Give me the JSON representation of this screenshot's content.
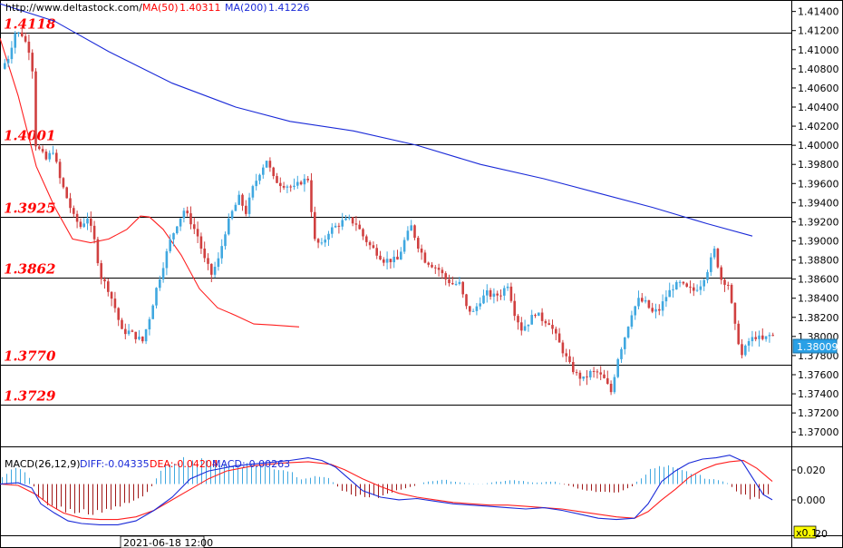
{
  "header": {
    "url": "http://www.deltastock.com/",
    "ma50_label": "MA(50)",
    "ma50_value": "1.40311",
    "ma200_label": "MA(200)",
    "ma200_value": "1.41226"
  },
  "colors": {
    "up": "#40a8e0",
    "down": "#d04040",
    "ma50": "#ff2020",
    "ma200": "#1a2ad8",
    "diff": "#1a2ad8",
    "dea": "#ff2020",
    "level_text": "#ff0000"
  },
  "levels": [
    {
      "label": "1.4118",
      "value": 1.4118
    },
    {
      "label": "1.4001",
      "value": 1.4001
    },
    {
      "label": "1.3925",
      "value": 1.3925
    },
    {
      "label": "1.3862",
      "value": 1.3862
    },
    {
      "label": "1.3770",
      "value": 1.377
    },
    {
      "label": "1.3729",
      "value": 1.3729
    }
  ],
  "current_price": "1.38009",
  "macd": {
    "title": "MACD(26,12,9)",
    "diff_text": "DIFF:-0.04335",
    "dea_text": "DEA:-0.04204",
    "macd_text": "MACD:-0.00263",
    "ticks": [
      "0.020",
      "0.000"
    ],
    "partial_tick": "20",
    "multiplier": "x0.1"
  },
  "time_label": "2021-06-18 12:00",
  "chart_data": [
    {
      "type": "candlestick",
      "title": "",
      "xlabel": "",
      "ylabel": "",
      "ylim": [
        1.3685,
        1.4152
      ],
      "yticks": [
        "1.41400",
        "1.41200",
        "1.41000",
        "1.40800",
        "1.40600",
        "1.40400",
        "1.40200",
        "1.40000",
        "1.39800",
        "1.39600",
        "1.39400",
        "1.39200",
        "1.39000",
        "1.38800",
        "1.38600",
        "1.38400",
        "1.38200",
        "1.38000",
        "1.37800",
        "1.37600",
        "1.37400",
        "1.37200",
        "1.37000"
      ],
      "grid": false,
      "anchors": [
        [
          0,
          1.408
        ],
        [
          2,
          1.4092
        ],
        [
          4,
          1.4118
        ],
        [
          6,
          1.4116
        ],
        [
          8,
          1.41
        ],
        [
          9,
          1.408
        ],
        [
          10,
          1.4001
        ],
        [
          11,
          1.3995
        ],
        [
          13,
          1.3985
        ],
        [
          15,
          1.3995
        ],
        [
          17,
          1.3965
        ],
        [
          19,
          1.3945
        ],
        [
          21,
          1.3925
        ],
        [
          23,
          1.3915
        ],
        [
          25,
          1.3925
        ],
        [
          27,
          1.39
        ],
        [
          28,
          1.388
        ],
        [
          29,
          1.3862
        ],
        [
          31,
          1.385
        ],
        [
          33,
          1.383
        ],
        [
          35,
          1.3805
        ],
        [
          37,
          1.3805
        ],
        [
          39,
          1.38
        ],
        [
          41,
          1.3795
        ],
        [
          43,
          1.382
        ],
        [
          45,
          1.385
        ],
        [
          47,
          1.3875
        ],
        [
          49,
          1.39
        ],
        [
          51,
          1.3918
        ],
        [
          53,
          1.3932
        ],
        [
          55,
          1.392
        ],
        [
          57,
          1.3905
        ],
        [
          59,
          1.388
        ],
        [
          61,
          1.3865
        ],
        [
          63,
          1.388
        ],
        [
          65,
          1.391
        ],
        [
          67,
          1.393
        ],
        [
          69,
          1.3945
        ],
        [
          71,
          1.393
        ],
        [
          73,
          1.3955
        ],
        [
          75,
          1.3972
        ],
        [
          77,
          1.3985
        ],
        [
          79,
          1.3965
        ],
        [
          81,
          1.396
        ],
        [
          83,
          1.3958
        ],
        [
          85,
          1.3955
        ],
        [
          87,
          1.3962
        ],
        [
          89,
          1.3965
        ],
        [
          91,
          1.39
        ],
        [
          93,
          1.3895
        ],
        [
          95,
          1.391
        ],
        [
          97,
          1.3915
        ],
        [
          99,
          1.392
        ],
        [
          101,
          1.3922
        ],
        [
          103,
          1.3918
        ],
        [
          105,
          1.3905
        ],
        [
          107,
          1.3895
        ],
        [
          109,
          1.3888
        ],
        [
          111,
          1.388
        ],
        [
          113,
          1.388
        ],
        [
          115,
          1.388
        ],
        [
          117,
          1.39
        ],
        [
          119,
          1.3915
        ],
        [
          121,
          1.3895
        ],
        [
          123,
          1.388
        ],
        [
          125,
          1.3875
        ],
        [
          127,
          1.387
        ],
        [
          129,
          1.386
        ],
        [
          131,
          1.3855
        ],
        [
          133,
          1.3855
        ],
        [
          135,
          1.383
        ],
        [
          137,
          1.3825
        ],
        [
          139,
          1.3838
        ],
        [
          141,
          1.3845
        ],
        [
          143,
          1.3842
        ],
        [
          145,
          1.3845
        ],
        [
          147,
          1.3855
        ],
        [
          149,
          1.3825
        ],
        [
          151,
          1.3808
        ],
        [
          153,
          1.3815
        ],
        [
          155,
          1.3825
        ],
        [
          157,
          1.3818
        ],
        [
          159,
          1.3815
        ],
        [
          161,
          1.38
        ],
        [
          163,
          1.3785
        ],
        [
          165,
          1.377
        ],
        [
          167,
          1.376
        ],
        [
          169,
          1.3755
        ],
        [
          171,
          1.3762
        ],
        [
          173,
          1.3762
        ],
        [
          175,
          1.3755
        ],
        [
          177,
          1.3742
        ],
        [
          179,
          1.3778
        ],
        [
          181,
          1.38
        ],
        [
          183,
          1.3825
        ],
        [
          185,
          1.3838
        ],
        [
          187,
          1.3835
        ],
        [
          189,
          1.3825
        ],
        [
          191,
          1.3828
        ],
        [
          193,
          1.3842
        ],
        [
          195,
          1.3852
        ],
        [
          197,
          1.3855
        ],
        [
          199,
          1.385
        ],
        [
          201,
          1.3848
        ],
        [
          203,
          1.3855
        ],
        [
          205,
          1.387
        ],
        [
          207,
          1.389
        ],
        [
          209,
          1.386
        ],
        [
          211,
          1.3855
        ],
        [
          213,
          1.381
        ],
        [
          215,
          1.378
        ],
        [
          217,
          1.3795
        ],
        [
          219,
          1.38
        ],
        [
          221,
          1.3796
        ],
        [
          223,
          1.3801
        ]
      ],
      "count": 224,
      "series": [
        {
          "name": "MA(50)",
          "values": [
            [
              0,
              1.4112
            ],
            [
              20,
              1.4052
            ],
            [
              40,
              1.3978
            ],
            [
              60,
              1.3936
            ],
            [
              80,
              1.3902
            ],
            [
              100,
              1.3898
            ],
            [
              120,
              1.3902
            ],
            [
              140,
              1.3912
            ],
            [
              155,
              1.3926
            ],
            [
              165,
              1.3925
            ],
            [
              180,
              1.3912
            ],
            [
              200,
              1.3885
            ],
            [
              220,
              1.385
            ],
            [
              240,
              1.383
            ],
            [
              260,
              1.3822
            ],
            [
              280,
              1.3813
            ],
            [
              300,
              1.3812
            ],
            [
              330,
              1.381
            ]
          ]
        },
        {
          "name": "MA(200)",
          "values": [
            [
              0,
              1.4148
            ],
            [
              60,
              1.413
            ],
            [
              120,
              1.4098
            ],
            [
              190,
              1.4065
            ],
            [
              260,
              1.404
            ],
            [
              320,
              1.4025
            ],
            [
              390,
              1.4015
            ],
            [
              460,
              1.4
            ],
            [
              530,
              1.398
            ],
            [
              600,
              1.3965
            ],
            [
              660,
              1.395
            ],
            [
              720,
              1.3935
            ],
            [
              780,
              1.3918
            ],
            [
              830,
              1.3905
            ]
          ]
        }
      ]
    },
    {
      "type": "macd",
      "ylim": [
        -0.039,
        0.028
      ],
      "ticks": [
        0.02,
        0.0
      ],
      "hist": [
        [
          0,
          0.005
        ],
        [
          15,
          0.012
        ],
        [
          25,
          0.01
        ],
        [
          35,
          0.002
        ],
        [
          40,
          -0.008
        ],
        [
          50,
          -0.014
        ],
        [
          60,
          -0.018
        ],
        [
          75,
          -0.02
        ],
        [
          90,
          -0.022
        ],
        [
          110,
          -0.02
        ],
        [
          130,
          -0.018
        ],
        [
          150,
          -0.012
        ],
        [
          165,
          -0.004
        ],
        [
          172,
          0.005
        ],
        [
          185,
          0.016
        ],
        [
          200,
          0.019
        ],
        [
          215,
          0.018
        ],
        [
          235,
          0.016
        ],
        [
          255,
          0.014
        ],
        [
          275,
          0.015
        ],
        [
          295,
          0.013
        ],
        [
          320,
          0.01
        ],
        [
          330,
          0.004
        ],
        [
          340,
          0.005
        ],
        [
          360,
          0.006
        ],
        [
          375,
          -0.004
        ],
        [
          395,
          -0.009
        ],
        [
          415,
          -0.01
        ],
        [
          430,
          -0.006
        ],
        [
          450,
          -0.003
        ],
        [
          470,
          0.002
        ],
        [
          490,
          0.003
        ],
        [
          510,
          0.001
        ],
        [
          530,
          0.0
        ],
        [
          550,
          0.002
        ],
        [
          570,
          0.003
        ],
        [
          590,
          0.001
        ],
        [
          610,
          0.002
        ],
        [
          630,
          -0.002
        ],
        [
          650,
          -0.005
        ],
        [
          675,
          -0.007
        ],
        [
          695,
          -0.003
        ],
        [
          705,
          0.004
        ],
        [
          720,
          0.012
        ],
        [
          735,
          0.013
        ],
        [
          750,
          0.01
        ],
        [
          765,
          0.008
        ],
        [
          780,
          0.004
        ],
        [
          800,
          0.002
        ],
        [
          815,
          -0.007
        ],
        [
          830,
          -0.011
        ],
        [
          850,
          -0.008
        ]
      ],
      "diff": [
        [
          0,
          0.0
        ],
        [
          20,
          0.001
        ],
        [
          35,
          -0.003
        ],
        [
          45,
          -0.015
        ],
        [
          60,
          -0.022
        ],
        [
          75,
          -0.028
        ],
        [
          90,
          -0.03
        ],
        [
          110,
          -0.031
        ],
        [
          130,
          -0.031
        ],
        [
          150,
          -0.028
        ],
        [
          170,
          -0.02
        ],
        [
          190,
          -0.01
        ],
        [
          210,
          0.004
        ],
        [
          230,
          0.01
        ],
        [
          260,
          0.014
        ],
        [
          290,
          0.016
        ],
        [
          320,
          0.018
        ],
        [
          340,
          0.02
        ],
        [
          355,
          0.018
        ],
        [
          370,
          0.013
        ],
        [
          385,
          0.004
        ],
        [
          400,
          -0.005
        ],
        [
          420,
          -0.01
        ],
        [
          440,
          -0.012
        ],
        [
          460,
          -0.011
        ],
        [
          480,
          -0.013
        ],
        [
          500,
          -0.015
        ],
        [
          520,
          -0.016
        ],
        [
          540,
          -0.017
        ],
        [
          560,
          -0.018
        ],
        [
          580,
          -0.019
        ],
        [
          600,
          -0.018
        ],
        [
          620,
          -0.02
        ],
        [
          640,
          -0.023
        ],
        [
          660,
          -0.026
        ],
        [
          680,
          -0.027
        ],
        [
          700,
          -0.026
        ],
        [
          715,
          -0.015
        ],
        [
          730,
          0.002
        ],
        [
          745,
          0.01
        ],
        [
          760,
          0.016
        ],
        [
          775,
          0.019
        ],
        [
          790,
          0.02
        ],
        [
          805,
          0.022
        ],
        [
          818,
          0.018
        ],
        [
          830,
          0.005
        ],
        [
          842,
          -0.008
        ],
        [
          852,
          -0.012
        ]
      ],
      "dea": [
        [
          0,
          0.0
        ],
        [
          20,
          -0.001
        ],
        [
          40,
          -0.008
        ],
        [
          55,
          -0.016
        ],
        [
          70,
          -0.022
        ],
        [
          90,
          -0.026
        ],
        [
          110,
          -0.027
        ],
        [
          130,
          -0.027
        ],
        [
          150,
          -0.025
        ],
        [
          170,
          -0.02
        ],
        [
          190,
          -0.012
        ],
        [
          210,
          -0.004
        ],
        [
          230,
          0.004
        ],
        [
          250,
          0.01
        ],
        [
          280,
          0.014
        ],
        [
          310,
          0.016
        ],
        [
          340,
          0.017
        ],
        [
          365,
          0.015
        ],
        [
          380,
          0.011
        ],
        [
          400,
          0.004
        ],
        [
          420,
          -0.002
        ],
        [
          440,
          -0.007
        ],
        [
          460,
          -0.01
        ],
        [
          480,
          -0.012
        ],
        [
          500,
          -0.014
        ],
        [
          520,
          -0.015
        ],
        [
          540,
          -0.016
        ],
        [
          560,
          -0.016
        ],
        [
          580,
          -0.017
        ],
        [
          600,
          -0.018
        ],
        [
          620,
          -0.019
        ],
        [
          640,
          -0.021
        ],
        [
          660,
          -0.023
        ],
        [
          680,
          -0.025
        ],
        [
          700,
          -0.026
        ],
        [
          715,
          -0.021
        ],
        [
          730,
          -0.012
        ],
        [
          745,
          -0.004
        ],
        [
          760,
          0.005
        ],
        [
          775,
          0.011
        ],
        [
          790,
          0.015
        ],
        [
          805,
          0.017
        ],
        [
          820,
          0.018
        ],
        [
          835,
          0.012
        ],
        [
          852,
          0.002
        ]
      ]
    }
  ]
}
